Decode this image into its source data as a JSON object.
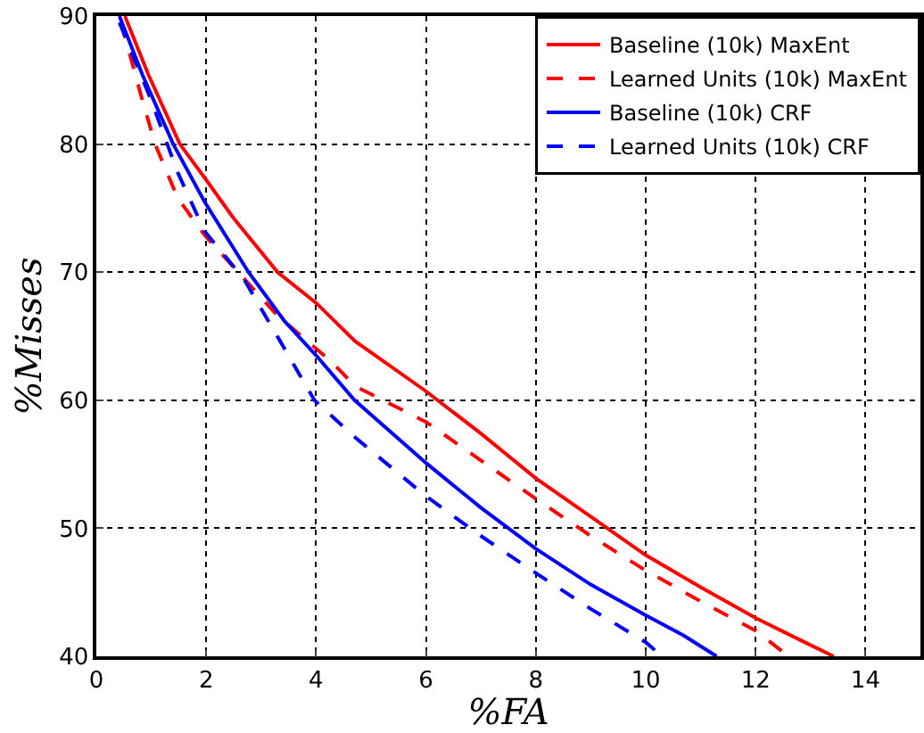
{
  "chart_data": {
    "type": "line",
    "xlabel": "%FA",
    "ylabel": "%Misses",
    "xlim": [
      0,
      15
    ],
    "ylim": [
      40,
      90
    ],
    "xticks": [
      0,
      2,
      4,
      6,
      8,
      10,
      12,
      14
    ],
    "yticks": [
      40,
      50,
      60,
      70,
      80,
      90
    ],
    "grid": true,
    "legend": "top right",
    "marker": "none",
    "series": [
      {
        "name": "Baseline (10k) MaxEnt",
        "color": "#ff0000",
        "line_style": "solid",
        "x": [
          0.52,
          0.95,
          1.52,
          2,
          2.5,
          3.3,
          4,
          4.71,
          6,
          7,
          8,
          9,
          10,
          11,
          12,
          12.8,
          13.42
        ],
        "values": [
          90,
          85.4,
          80,
          77.2,
          74.2,
          70,
          67.6,
          64.6,
          60.7,
          57.4,
          53.9,
          50.9,
          47.9,
          45.4,
          43,
          41.3,
          40
        ]
      },
      {
        "name": "Learned Units (10k) MaxEnt",
        "color": "#ff0000",
        "line_style": "dashed",
        "x": [
          0.45,
          0.84,
          1.07,
          1.48,
          1.97,
          2.56,
          3.3,
          4.28,
          4.71,
          6,
          7,
          8,
          9,
          10,
          11,
          12,
          12.6
        ],
        "values": [
          89.5,
          83.4,
          80,
          75.8,
          72.9,
          70.1,
          66.6,
          63,
          61.1,
          58.3,
          55.3,
          52.3,
          49.4,
          46.7,
          44.3,
          42,
          40
        ]
      },
      {
        "name": "Baseline (10k) CRF",
        "color": "#0000ff",
        "line_style": "solid",
        "x": [
          0.42,
          0.84,
          1.4,
          1.97,
          2.77,
          3.42,
          4,
          4.7,
          6,
          7,
          8,
          9,
          10,
          10.7,
          11.29
        ],
        "values": [
          90,
          85.4,
          80,
          75.5,
          70,
          66.2,
          63.5,
          60,
          55.1,
          51.6,
          48.4,
          45.6,
          43.2,
          41.6,
          40
        ]
      },
      {
        "name": "Learned Units (10k) CRF",
        "color": "#0000ff",
        "line_style": "dashed",
        "x": [
          0.42,
          1,
          1.48,
          1.97,
          2.68,
          3.32,
          3.97,
          4.71,
          6,
          7,
          8,
          9,
          10,
          10.3
        ],
        "values": [
          89.5,
          83.4,
          77.8,
          73.2,
          69.5,
          64.8,
          60,
          57.1,
          52.5,
          49.4,
          46.5,
          43.7,
          41.1,
          40
        ]
      }
    ]
  }
}
